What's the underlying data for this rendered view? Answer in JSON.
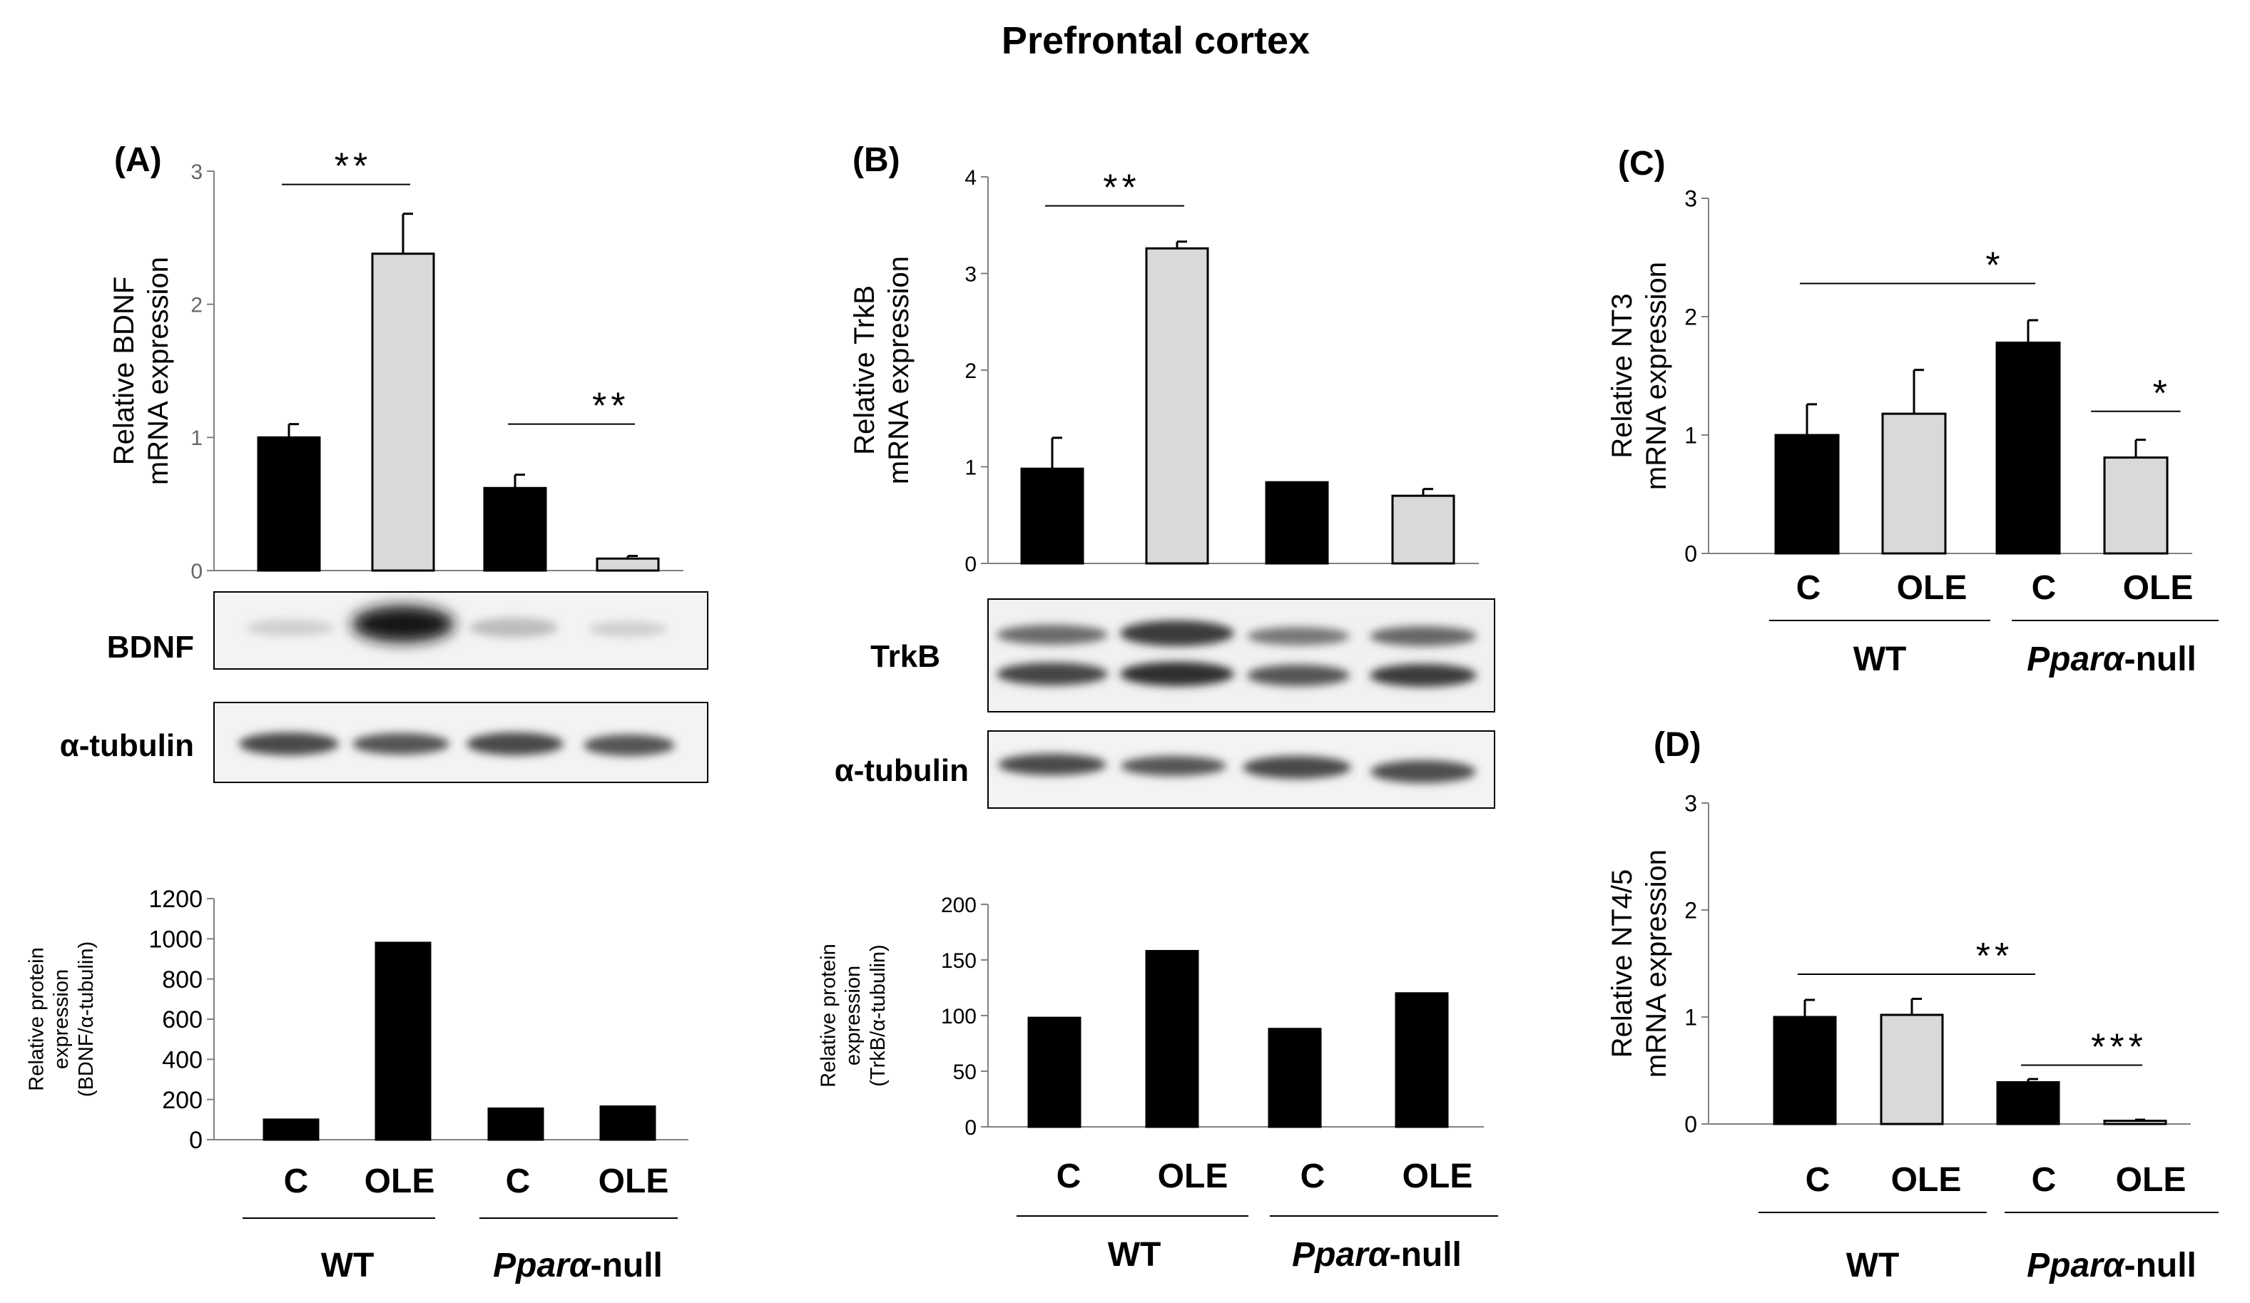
{
  "figure": {
    "title": "Prefrontal cortex"
  },
  "groups": {
    "conditions": [
      "C",
      "OLE",
      "C",
      "OLE"
    ],
    "genotypes": [
      {
        "name": "WT",
        "italic": "",
        "suffix": ""
      },
      {
        "name": "",
        "italic": "Pparα",
        "suffix": "-null"
      }
    ]
  },
  "blots": {
    "A": {
      "protein_label": "BDNF",
      "loading_label": "α-tubulin"
    },
    "B": {
      "protein_label": "TrkB",
      "loading_label": "α-tubulin"
    }
  },
  "colors": {
    "black_bar": "#000000",
    "gray_bar": "#d9d9d9",
    "axis": "#808080"
  },
  "chart_data": [
    {
      "id": "A-mrna",
      "panel": "(A)",
      "type": "bar",
      "ylabel_line1": "Relative BDNF",
      "ylabel_line2": "mRNA expression",
      "ylim": [
        0,
        3
      ],
      "yticks": [
        0,
        1,
        2,
        3
      ],
      "categories": [
        "C",
        "OLE",
        "C",
        "OLE"
      ],
      "values": [
        1.0,
        2.38,
        0.62,
        0.09
      ],
      "errors": [
        0.1,
        0.3,
        0.1,
        0.02
      ],
      "fills": [
        "black",
        "gray",
        "black",
        "gray"
      ],
      "significance": [
        {
          "from": 0,
          "to": 1,
          "label": "**",
          "y": 2.9
        },
        {
          "from": 2,
          "to": 3,
          "label": "**",
          "y": 1.1
        }
      ]
    },
    {
      "id": "A-protein",
      "type": "bar",
      "ylabel_line1": "Relative protein",
      "ylabel_line2": "expression",
      "ylabel_line3": "(BDNF/α-tubulin)",
      "ylim": [
        0,
        1200
      ],
      "yticks": [
        0,
        200,
        400,
        600,
        800,
        1000,
        1200
      ],
      "categories": [
        "C",
        "OLE",
        "C",
        "OLE"
      ],
      "values": [
        100,
        980,
        155,
        165
      ],
      "fills": [
        "black",
        "black",
        "black",
        "black"
      ]
    },
    {
      "id": "B-mrna",
      "panel": "(B)",
      "type": "bar",
      "ylabel_line1": "Relative TrkB",
      "ylabel_line2": "mRNA expression",
      "ylim": [
        0,
        4
      ],
      "yticks": [
        0,
        1,
        2,
        3,
        4
      ],
      "categories": [
        "C",
        "OLE",
        "C",
        "OLE"
      ],
      "values": [
        0.98,
        3.26,
        0.84,
        0.7
      ],
      "errors": [
        0.32,
        0.07,
        0.0,
        0.07
      ],
      "fills": [
        "black",
        "gray",
        "black",
        "gray"
      ],
      "significance": [
        {
          "from": 0,
          "to": 1,
          "label": "**",
          "y": 3.7
        }
      ]
    },
    {
      "id": "B-protein",
      "type": "bar",
      "ylabel_line1": "Relative protein",
      "ylabel_line2": "expression",
      "ylabel_line3": "(TrkB/α-tubulin)",
      "ylim": [
        0,
        200
      ],
      "yticks": [
        0,
        50,
        100,
        150,
        200
      ],
      "categories": [
        "C",
        "OLE",
        "C",
        "OLE"
      ],
      "values": [
        98,
        158,
        88,
        120
      ],
      "fills": [
        "black",
        "black",
        "black",
        "black"
      ]
    },
    {
      "id": "C-mrna",
      "panel": "(C)",
      "type": "bar",
      "ylabel_line1": "Relative NT3",
      "ylabel_line2": "mRNA expression",
      "ylim": [
        0,
        3
      ],
      "yticks": [
        0,
        1,
        2,
        3
      ],
      "categories": [
        "C",
        "OLE",
        "C",
        "OLE"
      ],
      "values": [
        1.0,
        1.18,
        1.78,
        0.81
      ],
      "errors": [
        0.26,
        0.37,
        0.19,
        0.15
      ],
      "fills": [
        "black",
        "gray",
        "black",
        "gray"
      ],
      "significance": [
        {
          "from": 0,
          "to": 2,
          "label": "*",
          "y": 2.28
        },
        {
          "from": 2.65,
          "to": 3.35,
          "label": "*",
          "y": 1.2
        }
      ]
    },
    {
      "id": "D-mrna",
      "panel": "(D)",
      "type": "bar",
      "ylabel_line1": "Relative NT4/5",
      "ylabel_line2": "mRNA expression",
      "ylim": [
        0,
        3
      ],
      "yticks": [
        0,
        1,
        2,
        3
      ],
      "categories": [
        "C",
        "OLE",
        "C",
        "OLE"
      ],
      "values": [
        1.0,
        1.02,
        0.39,
        0.03
      ],
      "errors": [
        0.16,
        0.15,
        0.03,
        0.01
      ],
      "fills": [
        "black",
        "gray",
        "black",
        "gray"
      ],
      "significance": [
        {
          "from": 0,
          "to": 2,
          "label": "**",
          "y": 1.4
        },
        {
          "from": 2,
          "to": 3,
          "label": "***",
          "y": 0.55
        }
      ]
    }
  ]
}
